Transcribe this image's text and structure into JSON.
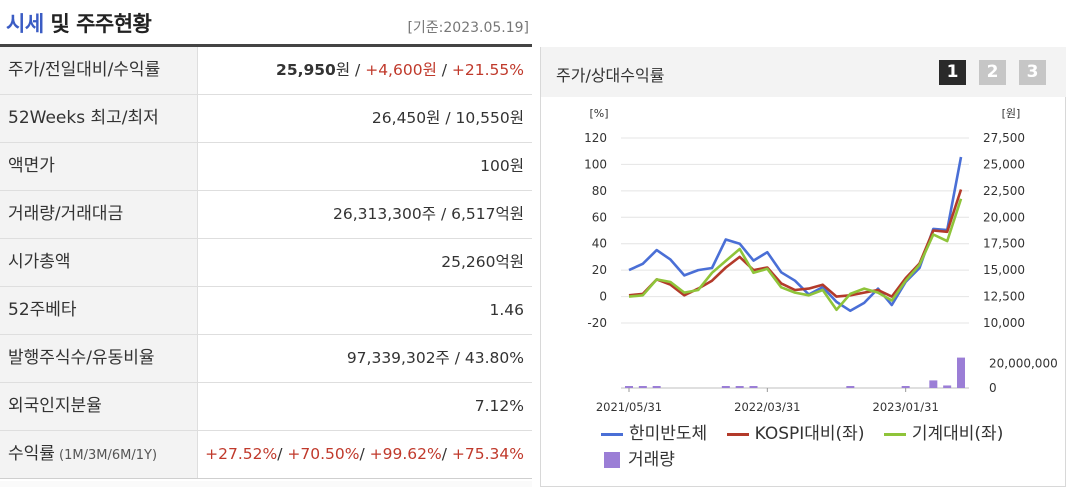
{
  "header": {
    "title_accent": "시세",
    "title_rest": " 및 주주현황",
    "base_date": "[기준:2023.05.19]"
  },
  "rows": [
    {
      "label": "주가/전일대비/수익률",
      "price": "25,950",
      "price_unit": "원",
      "sep1": " / ",
      "change": "+4,600원",
      "sep2": " / ",
      "rate": "+21.55%"
    },
    {
      "label": "52Weeks 최고/최저",
      "value": "26,450원 / 10,550원"
    },
    {
      "label": "액면가",
      "value": "100원"
    },
    {
      "label": "거래량/거래대금",
      "value": "26,313,300주 / 6,517억원"
    },
    {
      "label": "시가총액",
      "value": "25,260억원"
    },
    {
      "label": "52주베타",
      "value": "1.46"
    },
    {
      "label": "발행주식수/유동비율",
      "value": "97,339,302주 / 43.80%"
    },
    {
      "label": "외국인지분율",
      "value": "7.12%"
    },
    {
      "label": "수익률",
      "label_small": " (1M/3M/6M/1Y)",
      "r1": "+27.52%",
      "r2": "+70.50%",
      "r3": "+99.62%",
      "r4": "+75.34%",
      "sep": "/ "
    }
  ],
  "chart_panel": {
    "title": "주가/상대수익률",
    "pages": [
      "1",
      "2",
      "3"
    ],
    "active_page": 0
  },
  "colors": {
    "hanmi": "#4a6fd6",
    "kospi": "#b33a2a",
    "machine": "#8fc43a",
    "volume": "#9b7ed6",
    "grid": "#e4e4e4"
  },
  "chart_data": {
    "type": "line",
    "left_axis_unit": "[%]",
    "right_axis_unit": "[원]",
    "y_left_ticks": [
      "120",
      "100",
      "80",
      "60",
      "40",
      "20",
      "0",
      "-20"
    ],
    "y_left_range": [
      -20,
      120
    ],
    "y_right_ticks": [
      "27,500",
      "25,000",
      "22,500",
      "20,000",
      "17,500",
      "15,000",
      "12,500",
      "10,000"
    ],
    "volume_ticks": [
      "20,000,000",
      "0"
    ],
    "volume_range": [
      0,
      30000000
    ],
    "x_tick_labels": [
      "2021/05/31",
      "2022/03/31",
      "2023/01/31"
    ],
    "series": [
      {
        "name": "한미반도체",
        "axis": "right",
        "color_key": "hanmi",
        "values": [
          15000,
          15600,
          16900,
          16000,
          14500,
          15000,
          15200,
          17900,
          17500,
          15900,
          16700,
          14800,
          14000,
          12700,
          13400,
          12000,
          11150,
          11900,
          13250,
          11700,
          13900,
          15200,
          18900,
          18800,
          25700
        ]
      },
      {
        "name": "KOSPI대비(좌)",
        "axis": "left",
        "color_key": "kospi",
        "values": [
          1,
          2,
          13,
          9,
          1,
          6,
          12,
          22,
          30,
          20,
          22,
          10,
          5,
          6,
          9,
          0,
          1,
          3,
          5,
          0,
          14,
          25,
          50,
          49,
          81
        ]
      },
      {
        "name": "기계대비(좌)",
        "axis": "left",
        "color_key": "machine",
        "values": [
          0,
          1,
          13,
          11,
          3,
          5,
          18,
          27,
          36,
          18,
          21,
          7,
          3,
          1,
          5,
          -10,
          2,
          6,
          3,
          -3,
          12,
          24,
          47,
          42,
          74
        ]
      }
    ],
    "volume": {
      "name": "거래량",
      "color_key": "volume",
      "values": [
        500000,
        600000,
        400000,
        0,
        0,
        0,
        0,
        500000,
        400000,
        300000,
        0,
        0,
        0,
        0,
        0,
        0,
        300000,
        0,
        0,
        0,
        300000,
        0,
        6000000,
        2000000,
        24000000
      ]
    },
    "legend": [
      "한미반도체",
      "KOSPI대비(좌)",
      "기계대비(좌)",
      "거래량"
    ],
    "legend_position": "bottom"
  }
}
